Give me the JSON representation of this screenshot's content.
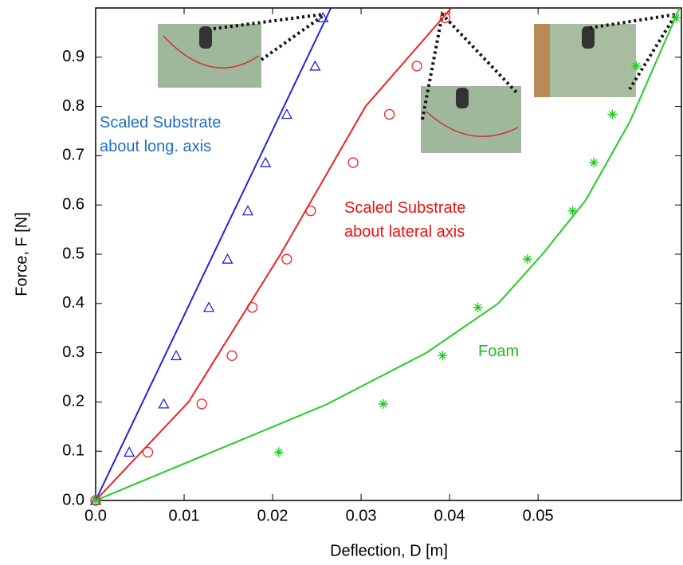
{
  "chart_data": {
    "type": "scatter",
    "x_label": "Deflection, D [m]",
    "y_label": "Force, F [N]",
    "xlim": [
      0,
      0.0662
    ],
    "ylim": [
      0,
      1.0
    ],
    "xticks": [
      {
        "value": 0,
        "label": "0.0"
      },
      0.01,
      0.02,
      0.03,
      0.04,
      0.05
    ],
    "yticks": [
      {
        "value": 0,
        "label": "0.0"
      },
      0.1,
      0.2,
      0.3,
      0.4,
      0.5,
      0.6,
      0.7,
      0.8,
      0.9
    ],
    "series": [
      {
        "color": "#2222dd",
        "marker": "triangle",
        "x": [
          0,
          0.0038,
          0.0077,
          0.0091,
          0.0128,
          0.0149,
          0.0172,
          0.0192,
          0.0216,
          0.0248,
          0.0257
        ],
        "values": [
          0,
          0.098,
          0.196,
          0.294,
          0.392,
          0.49,
          0.588,
          0.686,
          0.784,
          0.882,
          0.98
        ]
      },
      {
        "color": "#ee2222",
        "marker": "circle",
        "x": [
          0,
          0.0059,
          0.012,
          0.0154,
          0.0177,
          0.0216,
          0.0243,
          0.0291,
          0.0332,
          0.0363,
          0.0395
        ],
        "values": [
          0,
          0.098,
          0.196,
          0.294,
          0.392,
          0.49,
          0.588,
          0.686,
          0.784,
          0.882,
          0.98
        ]
      },
      {
        "color": "#22cc22",
        "marker": "star",
        "x": [
          0,
          0.0207,
          0.0325,
          0.0392,
          0.0432,
          0.0488,
          0.0539,
          0.0563,
          0.0584,
          0.0611,
          0.0656
        ],
        "values": [
          0,
          0.098,
          0.196,
          0.294,
          0.392,
          0.49,
          0.588,
          0.686,
          0.784,
          0.882,
          0.98
        ]
      }
    ],
    "fits": [
      {
        "color": "#2222dd",
        "x": [
          0,
          0.0266
        ],
        "values": [
          0,
          1.0
        ]
      },
      {
        "color": "#ee2222",
        "x": [
          0,
          0.0105,
          0.0209,
          0.0305,
          0.0402
        ],
        "values": [
          0,
          0.2,
          0.5,
          0.8,
          1.0
        ]
      },
      {
        "color": "#22cc22",
        "x": [
          0,
          0.0261,
          0.0374,
          0.0455,
          0.0505,
          0.0554,
          0.0604,
          0.066
        ],
        "values": [
          0,
          0.195,
          0.3,
          0.4,
          0.5,
          0.61,
          0.77,
          1.0
        ]
      }
    ],
    "annotations": [
      {
        "lines": [
          "Scaled Substrate",
          "about long. axis"
        ],
        "color": "#1f6fc5"
      },
      {
        "lines": [
          "Scaled Substrate",
          "about lateral axis"
        ],
        "color": "#ee1111"
      },
      {
        "lines": [
          "Foam"
        ],
        "color": "#22bb22"
      }
    ]
  }
}
